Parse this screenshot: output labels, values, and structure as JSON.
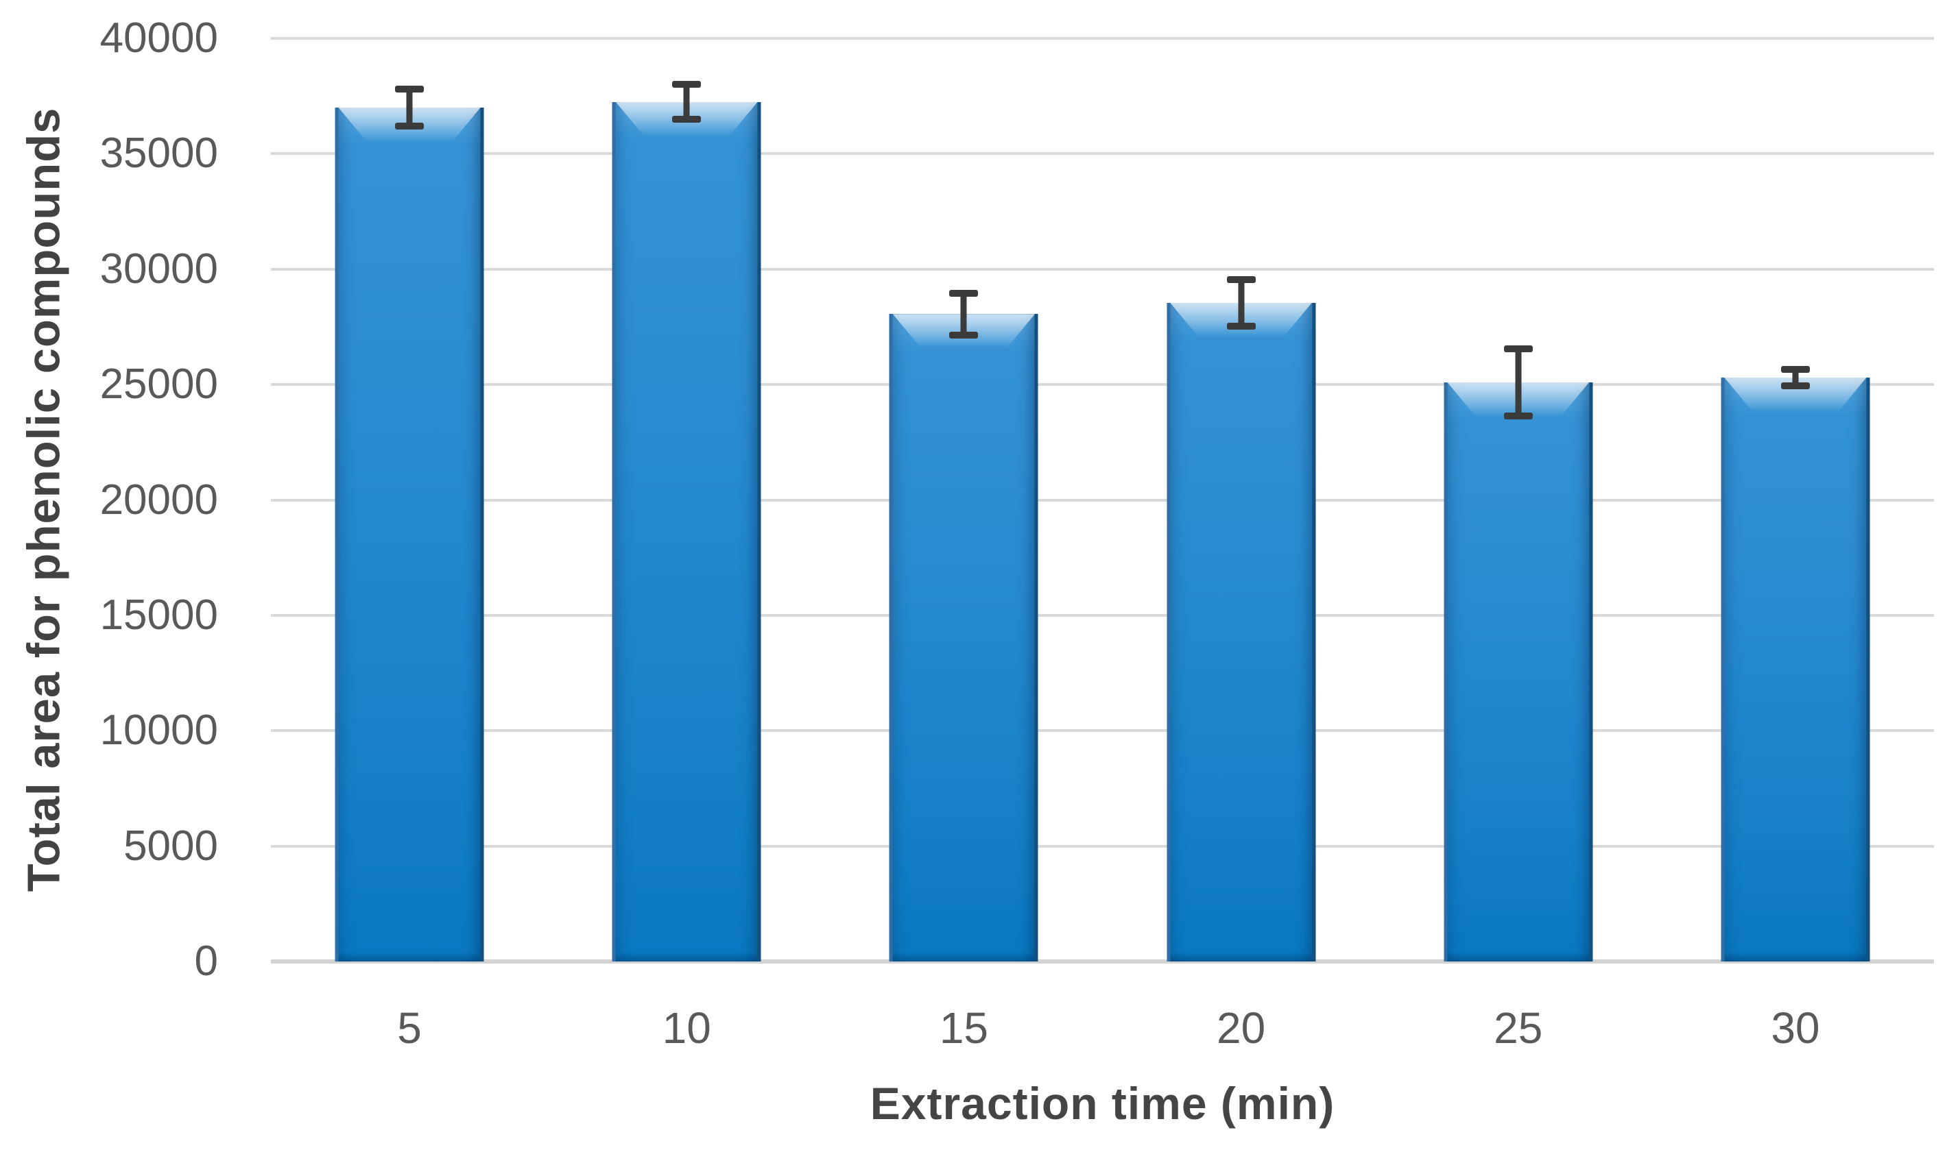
{
  "chart_data": {
    "type": "bar",
    "title": "",
    "categories": [
      "5",
      "10",
      "15",
      "20",
      "25",
      "30"
    ],
    "series": [
      {
        "name": "Total area for phenolic compounds",
        "values": [
          37000,
          37250,
          28050,
          28550,
          25100,
          25300
        ],
        "error_bars": [
          900,
          850,
          1000,
          1100,
          1550,
          450
        ]
      }
    ],
    "xlabel": "Extraction time (min)",
    "ylabel": "Total area for phenolic compounds",
    "ylim": [
      0,
      40000
    ],
    "ytick_interval": 5000,
    "yticks": [
      40000,
      35000,
      30000,
      25000,
      20000,
      15000,
      10000,
      5000,
      0
    ],
    "grid": "horizontal",
    "legend_position": "none",
    "colors": {
      "bar_fill": "#2a8cd0",
      "bar_fill_highlight": "#8fc7ef",
      "bar_fill_dark": "#0878c1",
      "bar_edge": "#1f5c94",
      "error_bar": "#3b3b3b",
      "gridline": "#d9d9d9",
      "tick_label": "#595959",
      "axis_title": "#454545",
      "background": "#ffffff"
    }
  }
}
